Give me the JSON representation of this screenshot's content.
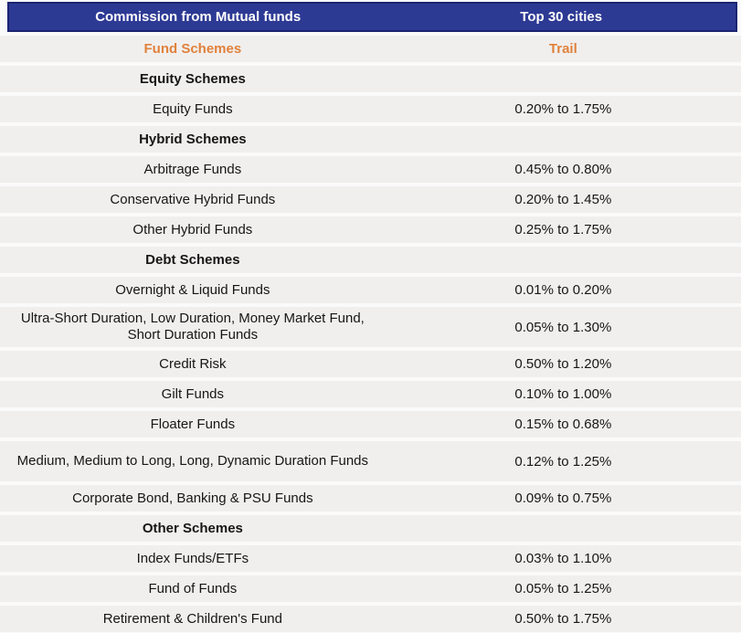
{
  "header": {
    "left": "Commission from Mutual funds",
    "right": "Top 30 cities"
  },
  "subheader": {
    "left": "Fund Schemes",
    "right": "Trail"
  },
  "colors": {
    "header_bg": "#2d3a94",
    "header_border": "#1b2470",
    "header_text": "#ffffff",
    "accent_orange": "#e0813c",
    "row_bg": "#f1efee",
    "gap_bg": "#fbfafa",
    "body_text": "#161616"
  },
  "chart_data": {
    "type": "table",
    "title": "Commission from Mutual funds",
    "region_label": "Top 30 cities",
    "columns": [
      "Fund Schemes",
      "Trail"
    ],
    "rows": [
      {
        "type": "section",
        "scheme": "Equity Schemes",
        "trail": ""
      },
      {
        "type": "data",
        "scheme": "Equity Funds",
        "trail": "0.20% to 1.75%"
      },
      {
        "type": "section",
        "scheme": "Hybrid Schemes",
        "trail": ""
      },
      {
        "type": "data",
        "scheme": "Arbitrage Funds",
        "trail": "0.45% to 0.80%"
      },
      {
        "type": "data",
        "scheme": "Conservative Hybrid Funds",
        "trail": "0.20% to 1.45%"
      },
      {
        "type": "data",
        "scheme": "Other Hybrid Funds",
        "trail": "0.25% to 1.75%"
      },
      {
        "type": "section",
        "scheme": "Debt Schemes",
        "trail": ""
      },
      {
        "type": "data",
        "scheme": "Overnight & Liquid Funds",
        "trail": "0.01% to 0.20%"
      },
      {
        "type": "data",
        "scheme": "Ultra-Short Duration, Low Duration, Money Market Fund, Short Duration Funds",
        "trail": "0.05% to 1.30%",
        "two_line": true
      },
      {
        "type": "data",
        "scheme": "Credit Risk",
        "trail": "0.50% to 1.20%"
      },
      {
        "type": "data",
        "scheme": "Gilt Funds",
        "trail": "0.10% to 1.00%"
      },
      {
        "type": "data",
        "scheme": "Floater Funds",
        "trail": "0.15% to 0.68%"
      },
      {
        "type": "data",
        "scheme": "Medium, Medium to Long, Long, Dynamic Duration Funds",
        "trail": "0.12% to 1.25%",
        "two_line": true
      },
      {
        "type": "data",
        "scheme": "Corporate Bond, Banking & PSU Funds",
        "trail": "0.09% to 0.75%"
      },
      {
        "type": "section",
        "scheme": "Other Schemes",
        "trail": ""
      },
      {
        "type": "data",
        "scheme": "Index Funds/ETFs",
        "trail": "0.03% to 1.10%"
      },
      {
        "type": "data",
        "scheme": "Fund of Funds",
        "trail": "0.05% to 1.25%"
      },
      {
        "type": "data",
        "scheme": "Retirement & Children's Fund",
        "trail": "0.50% to 1.75%"
      }
    ]
  }
}
